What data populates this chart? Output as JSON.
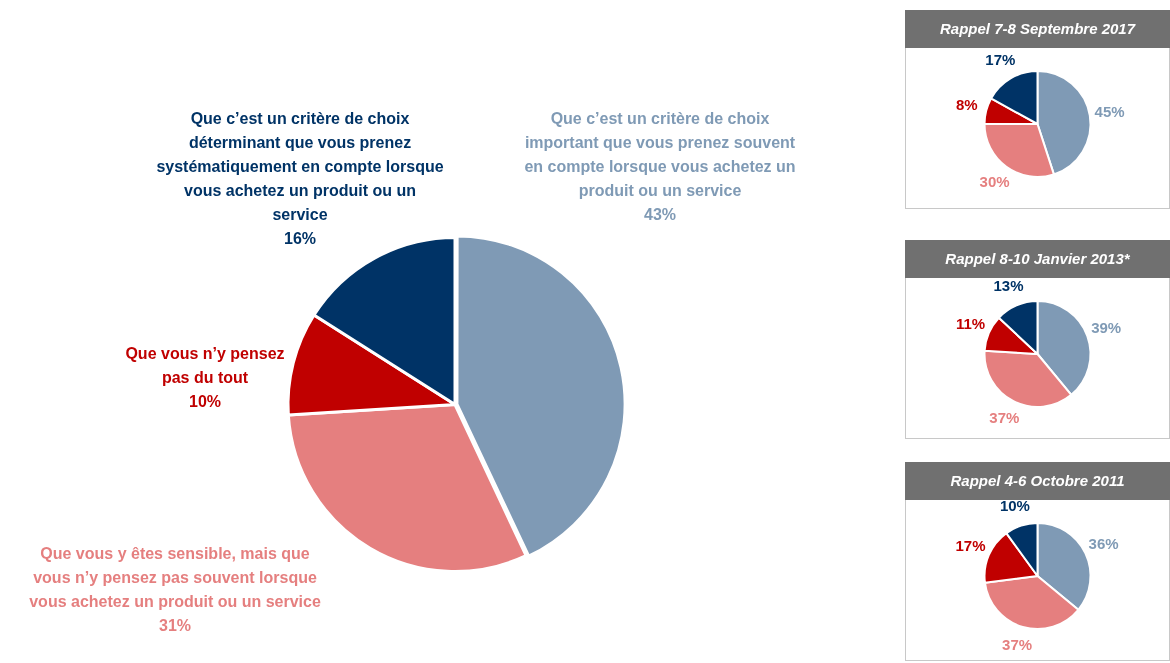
{
  "chart_data": [
    {
      "type": "pie",
      "categories": [
        "Que c’est un critère de choix important que vous prenez souvent en compte lorsque vous achetez un produit ou un service",
        "Que vous y êtes sensible, mais que vous n’y pensez pas souvent lorsque vous achetez un produit ou un service",
        "Que vous n’y pensez pas du tout",
        "Que c’est un critère de choix déterminant que vous prenez systématiquement en compte lorsque vous achetez un produit ou un service"
      ],
      "values": [
        43,
        31,
        10,
        16
      ],
      "colors": [
        "#7f9ab5",
        "#e57f7f",
        "#c00000",
        "#003366"
      ],
      "value_labels": [
        "43%",
        "31%",
        "10%",
        "16%"
      ],
      "legend": false
    },
    {
      "type": "pie",
      "title": "Rappel 7-8 Septembre 2017",
      "categories": [
        null,
        null,
        null,
        null
      ],
      "values": [
        45,
        30,
        8,
        17
      ],
      "colors": [
        "#7f9ab5",
        "#e57f7f",
        "#c00000",
        "#003366"
      ],
      "value_labels": [
        "45%",
        "30%",
        "8%",
        "17%"
      ],
      "legend": false
    },
    {
      "type": "pie",
      "title": "Rappel 8-10 Janvier 2013*",
      "categories": [
        null,
        null,
        null,
        null
      ],
      "values": [
        39,
        37,
        11,
        13
      ],
      "colors": [
        "#7f9ab5",
        "#e57f7f",
        "#c00000",
        "#003366"
      ],
      "value_labels": [
        "39%",
        "37%",
        "11%",
        "13%"
      ],
      "legend": false
    },
    {
      "type": "pie",
      "title": "Rappel 4-6 Octobre 2011",
      "categories": [
        null,
        null,
        null,
        null
      ],
      "values": [
        36,
        37,
        17,
        10
      ],
      "colors": [
        "#7f9ab5",
        "#e57f7f",
        "#c00000",
        "#003366"
      ],
      "value_labels": [
        "36%",
        "37%",
        "17%",
        "10%"
      ],
      "legend": false
    }
  ]
}
